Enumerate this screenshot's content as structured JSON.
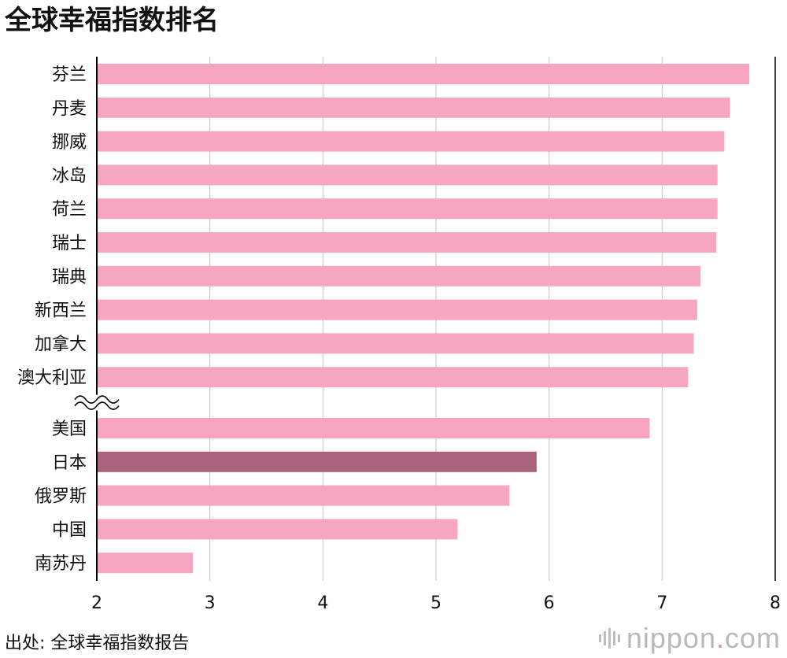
{
  "title": "全球幸福指数排名",
  "source": "出处: 全球幸福指数报告",
  "logo": {
    "name": "nippon",
    "dot": ".",
    "tld": "com"
  },
  "colors": {
    "bar": "#f6a6c0",
    "highlight": "#a8627c",
    "grid": "#cccccc",
    "axis": "#000000"
  },
  "chart_data": {
    "type": "bar",
    "orientation": "horizontal",
    "categories": [
      "芬兰",
      "丹麦",
      "挪威",
      "冰岛",
      "荷兰",
      "瑞士",
      "瑞典",
      "新西兰",
      "加拿大",
      "澳大利亚",
      "美国",
      "日本",
      "俄罗斯",
      "中国",
      "南苏丹"
    ],
    "values": [
      7.77,
      7.6,
      7.55,
      7.49,
      7.49,
      7.48,
      7.34,
      7.31,
      7.28,
      7.23,
      6.89,
      5.89,
      5.65,
      5.19,
      2.85
    ],
    "highlight": "日本",
    "axis_break_after": "澳大利亚",
    "xlim": [
      2,
      8
    ],
    "xticks": [
      "2",
      "3",
      "4",
      "5",
      "6",
      "7",
      "8"
    ],
    "grid": true,
    "xlabel": "",
    "ylabel": ""
  }
}
